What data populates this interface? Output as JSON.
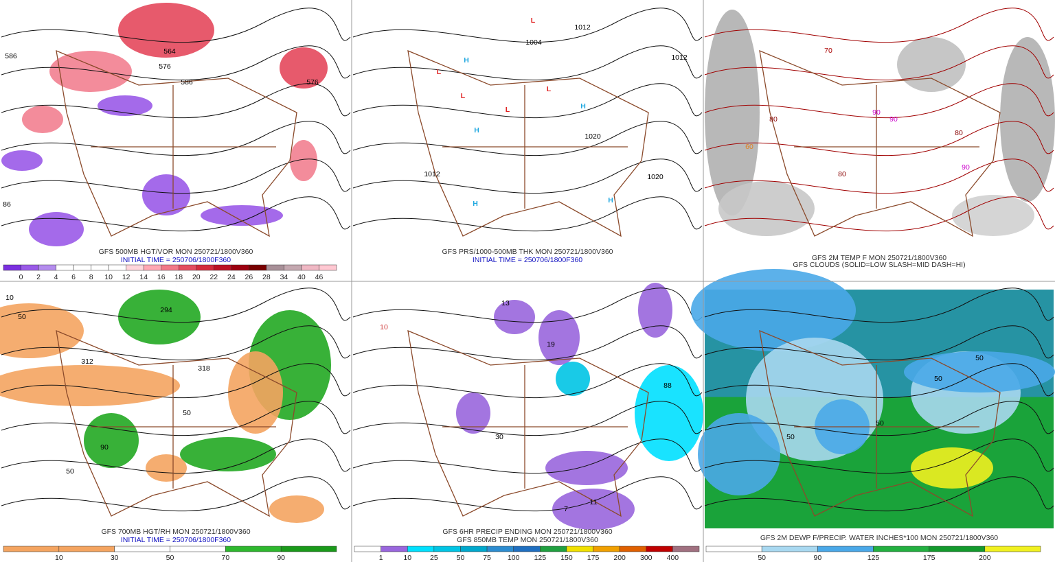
{
  "panels": [
    {
      "caption": [
        "GFS 500MB HGT/VOR MON 250721/1800V360",
        "INITIAL TIME = 250706/1800F360"
      ],
      "colorbar": {
        "colors": [
          "#7b2fe0",
          "#9a5ae8",
          "#b48cee",
          "#ffffff",
          "#ffffff",
          "#ffffff",
          "#ffffff",
          "#ffd6dc",
          "#ffa8b4",
          "#f27888",
          "#e44c60",
          "#d42a3c",
          "#bc1024",
          "#9c0010",
          "#780000",
          "#a89098",
          "#c4a8b0",
          "#f0b8c4",
          "#ffc8d2"
        ],
        "labels": [
          "0",
          "2",
          "4",
          "6",
          "8",
          "10",
          "12",
          "14",
          "16",
          "18",
          "20",
          "22",
          "24",
          "26",
          "28",
          "34",
          "40",
          "46"
        ]
      },
      "map_labels": [
        "586",
        "564",
        "576",
        "586",
        "576",
        "86"
      ]
    },
    {
      "caption": [
        "GFS PRS/1000-500MB THK MON 250721/1800V360",
        "INITIAL TIME = 250706/1800F360"
      ],
      "map_labels": [
        "1004",
        "1012",
        "1012",
        "1020",
        "1020",
        "1012",
        "L",
        "L",
        "L",
        "L",
        "L",
        "H",
        "H",
        "H",
        "H",
        "H"
      ]
    },
    {
      "caption": [
        "GFS 2M TEMP F MON 250721/1800V360",
        "GFS CLOUDS (SOLID=LOW SLASH=MID DASH=HI)"
      ],
      "map_labels": [
        "80",
        "80",
        "80",
        "90",
        "90",
        "70",
        "60",
        "90"
      ]
    },
    {
      "caption": [
        "GFS 700MB HGT/RH MON 250721/1800V360",
        "INITIAL TIME = 250706/1800F360"
      ],
      "colorbar": {
        "colors": [
          "#f4a460",
          "#f4a460",
          "#ffffff",
          "#ffffff",
          "#2eb82e",
          "#1a9a1a"
        ],
        "labels": [
          "10",
          "30",
          "50",
          "70",
          "90"
        ]
      },
      "map_labels": [
        "294",
        "312",
        "318",
        "50",
        "50",
        "50",
        "90",
        "10"
      ]
    },
    {
      "caption": [
        "GFS 6HR PRECIP ENDING MON 250721/1800V360",
        "GFS 850MB TEMP MON 250721/1800V360"
      ],
      "colorbar": {
        "colors": [
          "#ffffff",
          "#9966dd",
          "#00e0ff",
          "#00c4e4",
          "#00a8cc",
          "#2c8cd0",
          "#1f6fc0",
          "#20a040",
          "#f0e000",
          "#f0a000",
          "#e06000",
          "#c00000",
          "#a07080"
        ],
        "labels": [
          "1",
          "10",
          "25",
          "50",
          "75",
          "100",
          "125",
          "150",
          "175",
          "200",
          "300",
          "400"
        ]
      },
      "map_labels": [
        "10",
        "13",
        "19",
        "88",
        "7",
        "11",
        "30"
      ]
    },
    {
      "caption": [
        "GFS 2M DEWP F/PRECIP. WATER INCHES*100 MON 250721/1800V360"
      ],
      "colorbar": {
        "colors": [
          "#ffffff",
          "#a8d8f0",
          "#4aa8e8",
          "#22b040",
          "#139a2c",
          "#f0f020"
        ],
        "labels": [
          "50",
          "90",
          "125",
          "175",
          "200"
        ]
      },
      "map_labels": [
        "50",
        "50",
        "50",
        "50"
      ]
    }
  ]
}
